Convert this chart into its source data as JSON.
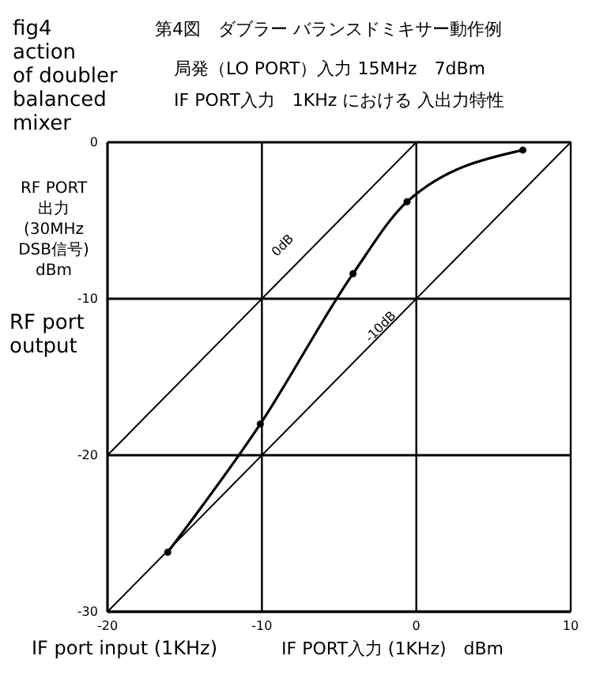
{
  "chart_data": {
    "type": "line",
    "title": "第4図　ダブラー バランスドミキサー動作例",
    "subtitle": "局発（LO PORT）入力 15MHz　7dBm\nIF PORT入力　1KHz における 入出力特性",
    "xlabel": "IF PORT入力 (1KHz)　dBm",
    "ylabel": "RF PORT\n出力\n(30MHz\nDSB信号)\ndBm",
    "annotations": [
      "fig4\naction\nof doubler\nbalanced\nmixer",
      "RF port\noutput",
      "IF port input (1KHz)"
    ],
    "xlim": [
      -20,
      10
    ],
    "ylim": [
      -30,
      0
    ],
    "xticks": [
      -20,
      -10,
      0,
      10
    ],
    "yticks": [
      -30,
      -20,
      -10,
      0
    ],
    "grid": true,
    "marker": "circle",
    "line_style": "solid",
    "series": [
      {
        "color": "#000000",
        "x": [
          -16.1,
          -10.1,
          -4.1,
          -0.6,
          6.9
        ],
        "values": [
          -26.2,
          -18,
          -8.4,
          -3.8,
          -0.5
        ]
      },
      {
        "name": "0dB",
        "color": "#000000",
        "marker": "none",
        "x": [
          -20,
          0
        ],
        "values": [
          -20,
          0
        ]
      },
      {
        "name": "-10dB",
        "color": "#000000",
        "marker": "none",
        "x": [
          -20,
          10
        ],
        "values": [
          -30,
          0
        ]
      }
    ]
  }
}
